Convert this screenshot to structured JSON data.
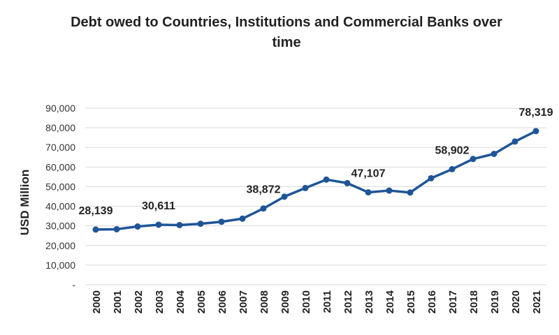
{
  "chart_data": {
    "type": "line",
    "title": "Debt owed to Countries, Institutions and Commercial Banks over time",
    "xlabel": "",
    "ylabel": "USD Million",
    "ylim": [
      0,
      90000
    ],
    "yticks": [
      0,
      10000,
      20000,
      30000,
      40000,
      50000,
      60000,
      70000,
      80000,
      90000
    ],
    "ytick_labels": [
      "-",
      "10,000",
      "20,000",
      "30,000",
      "40,000",
      "50,000",
      "60,000",
      "70,000",
      "80,000",
      "90,000"
    ],
    "grid": true,
    "legend": "none",
    "color": "#1f5597",
    "categories": [
      "2000",
      "2001",
      "2002",
      "2003",
      "2004",
      "2005",
      "2006",
      "2007",
      "2008",
      "2009",
      "2010",
      "2011",
      "2012",
      "2013",
      "2014",
      "2015",
      "2016",
      "2017",
      "2018",
      "2019",
      "2020",
      "2021"
    ],
    "values": [
      28139,
      28300,
      29700,
      30611,
      30400,
      31100,
      32100,
      33700,
      38872,
      44900,
      49300,
      53600,
      51800,
      47107,
      48000,
      47000,
      54300,
      58902,
      64100,
      66700,
      73000,
      78319
    ],
    "data_labels": [
      {
        "year": "2000",
        "text": "28,139"
      },
      {
        "year": "2003",
        "text": "30,611"
      },
      {
        "year": "2008",
        "text": "38,872"
      },
      {
        "year": "2013",
        "text": "47,107"
      },
      {
        "year": "2017",
        "text": "58,902"
      },
      {
        "year": "2021",
        "text": "78,319"
      }
    ]
  }
}
